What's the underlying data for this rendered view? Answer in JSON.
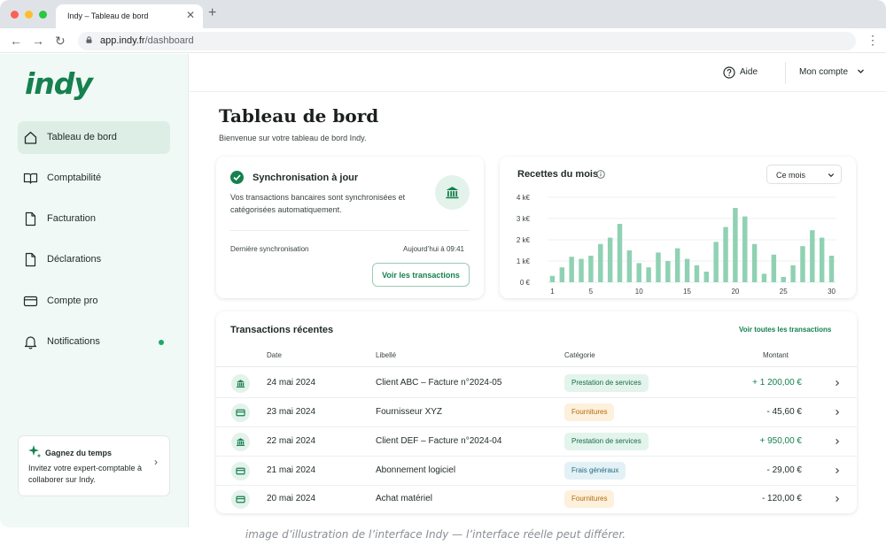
{
  "browser": {
    "tab_title": "Indy – Tableau de bord",
    "url_host": "app.indy.fr",
    "url_path": "/dashboard"
  },
  "sidebar": {
    "logo": "indy",
    "items": [
      {
        "label": "Tableau de bord",
        "icon": "home-icon",
        "active": true
      },
      {
        "label": "Comptabilité",
        "icon": "book-icon"
      },
      {
        "label": "Facturation",
        "icon": "document-icon"
      },
      {
        "label": "Déclarations",
        "icon": "file-icon"
      },
      {
        "label": "Compte pro",
        "icon": "card-icon"
      },
      {
        "label": "Notifications",
        "icon": "bell-icon",
        "badge": true
      }
    ],
    "promo": {
      "title": "Gagnez du temps",
      "text": "Invitez votre expert-comptable à collaborer sur Indy."
    }
  },
  "topbar": {
    "help": "Aide",
    "account": "Mon compte"
  },
  "page": {
    "title": "Tableau de bord",
    "subtitle": "Bienvenue sur votre tableau de bord Indy."
  },
  "sync": {
    "title": "Synchronisation à jour",
    "text": "Vos transactions bancaires sont synchronisées et catégorisées automatiquement.",
    "last_label": "Dernière synchronisation",
    "last_value": "Aujourd’hui à 09:41",
    "button": "Voir les transactions"
  },
  "revenue": {
    "title": "Recettes du mois",
    "period": "Ce mois"
  },
  "chart_data": {
    "type": "bar",
    "x": [
      1,
      2,
      3,
      4,
      5,
      6,
      7,
      8,
      9,
      10,
      11,
      12,
      13,
      14,
      15,
      16,
      17,
      18,
      19,
      20,
      21,
      22,
      23,
      24,
      25,
      26,
      27,
      28,
      29,
      30
    ],
    "values": [
      300,
      700,
      1200,
      1100,
      1250,
      1800,
      2100,
      2750,
      1500,
      900,
      700,
      1400,
      1000,
      1600,
      1100,
      800,
      500,
      1900,
      2600,
      3500,
      3100,
      1800,
      400,
      1300,
      250,
      800,
      1700,
      2450,
      2100,
      1250
    ],
    "x_tick_labels": [
      "1",
      "5",
      "10",
      "15",
      "20",
      "25",
      "30"
    ],
    "y_tick_labels": [
      "0 €",
      "1 k€",
      "2 k€",
      "3 k€",
      "4 k€"
    ],
    "ylim": [
      0,
      4000
    ],
    "grid": true,
    "bar_color": "#8fd1b3"
  },
  "transactions": {
    "title": "Transactions récentes",
    "see_all": "Voir toutes les transactions",
    "headers": {
      "date": "Date",
      "label": "Libellé",
      "category": "Catégorie",
      "amount": "Montant"
    },
    "rows": [
      {
        "icon": "bank-icon",
        "date": "24 mai 2024",
        "label": "Client ABC – Facture n°2024-05",
        "category": "Prestation de services",
        "cat_style": "green",
        "amount": "+ 1 200,00 €",
        "positive": true
      },
      {
        "icon": "card-icon",
        "date": "23 mai 2024",
        "label": "Fournisseur XYZ",
        "category": "Fournitures",
        "cat_style": "orange",
        "amount": "- 45,60 €",
        "positive": false
      },
      {
        "icon": "bank-icon",
        "date": "22 mai 2024",
        "label": "Client DEF – Facture n°2024-04",
        "category": "Prestation de services",
        "cat_style": "green",
        "amount": "+ 950,00 €",
        "positive": true
      },
      {
        "icon": "card-icon",
        "date": "21 mai 2024",
        "label": "Abonnement logiciel",
        "category": "Frais généraux",
        "cat_style": "blue",
        "amount": "- 29,00 €",
        "positive": false
      },
      {
        "icon": "card-icon",
        "date": "20 mai 2024",
        "label": "Achat matériel",
        "category": "Fournitures",
        "cat_style": "orange",
        "amount": "- 120,00 €",
        "positive": false
      }
    ]
  },
  "caption": "image d’illustration de l’interface Indy — l’interface réelle peut différer.",
  "colors": {
    "brand": "#16804f",
    "positive": "#16804f",
    "pill_green_bg": "#e3f4ec",
    "pill_green_fg": "#166b45",
    "pill_orange_bg": "#fdf0dc",
    "pill_orange_fg": "#b36b0a",
    "pill_blue_bg": "#e3f1f6",
    "pill_blue_fg": "#1f6a83"
  }
}
